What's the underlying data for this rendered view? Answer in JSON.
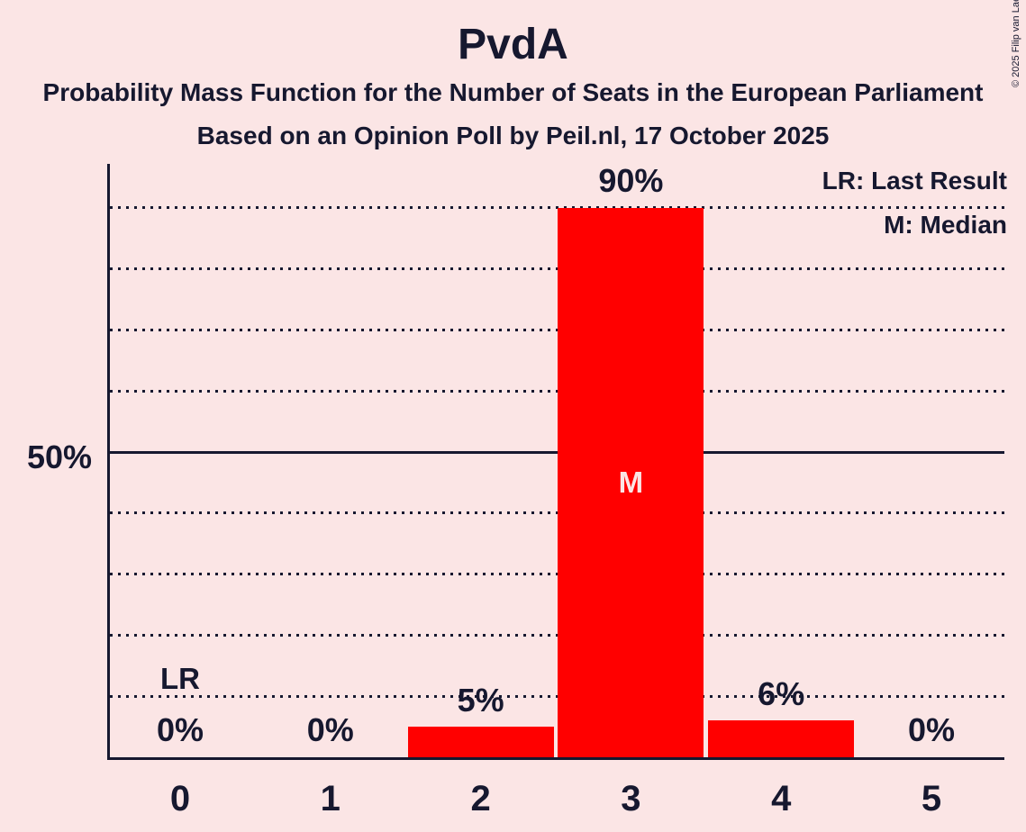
{
  "copyright": "© 2025 Filip van Laenen",
  "colors": {
    "background": "#fbe5e5",
    "bar": "#ff0000",
    "text": "#16182f",
    "median_label": "#fbe5e5"
  },
  "chart_data": {
    "type": "bar",
    "title": "PvdA",
    "subtitle": "Probability Mass Function for the Number of Seats in the European Parliament",
    "caption": "Based on an Opinion Poll by Peil.nl, 17 October 2025",
    "xlabel": "",
    "ylabel": "",
    "categories": [
      "0",
      "1",
      "2",
      "3",
      "4",
      "5"
    ],
    "values": [
      0,
      0,
      5,
      90,
      6,
      0
    ],
    "value_labels": [
      "0%",
      "0%",
      "5%",
      "90%",
      "6%",
      "0%"
    ],
    "annotations": {
      "median_bar_index": 3,
      "median_marker": "M",
      "last_result_bar_index": 0,
      "last_result_marker": "LR"
    },
    "legend": {
      "last_result": "LR: Last Result",
      "median": "M: Median"
    },
    "legend_position": "top-right",
    "y_axis": {
      "ylim": [
        0,
        98
      ],
      "ticks": [
        {
          "value": 50,
          "label": "50%"
        }
      ],
      "gridlines_dotted": [
        10,
        20,
        30,
        40,
        60,
        70,
        80,
        90
      ],
      "gridlines_solid": [
        50
      ],
      "unit": "percent"
    }
  }
}
